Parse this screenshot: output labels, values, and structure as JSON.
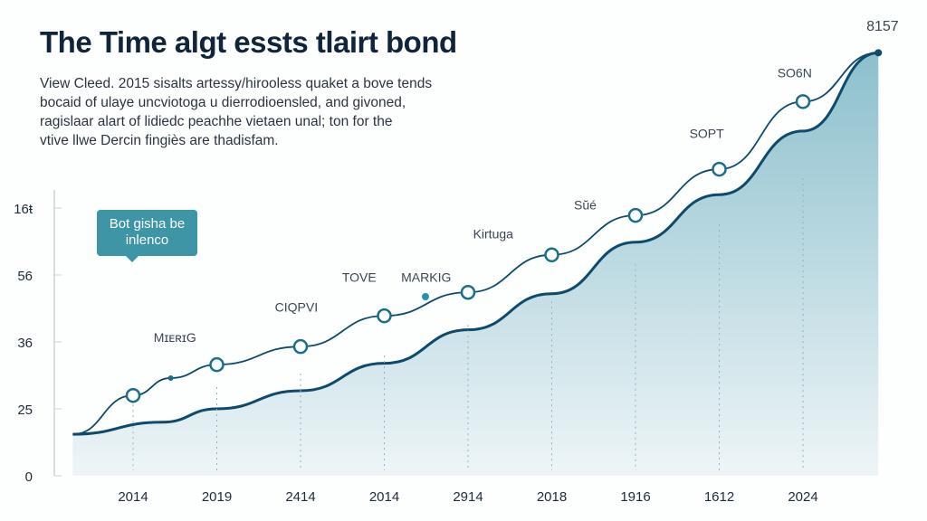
{
  "chart_data": {
    "type": "area",
    "title": "The Time algt essts tlairt bond",
    "subtitle": [
      "View Cleed. 2015 sisalts artessy/hirooless quaket a bove tends",
      "bocaid of ulaye uncviotoga u dierrodioensled, and givoned,",
      "ragislaar alart of lidiedc peachhe vietaen unal; ton for the",
      "vtive llwe Dercin fingiès are thadisfam."
    ],
    "y_tick_labels": [
      "0",
      "25",
      "36",
      "56",
      "16ŧ"
    ],
    "x_tick_labels": [
      "2014",
      "2019",
      "2414",
      "2014",
      "2914",
      "2018",
      "1916",
      "1612",
      "2024"
    ],
    "y_scale_note": "values in tick-index units (0 = first tick, 4 = top tick)",
    "ylim": [
      0,
      6.5
    ],
    "series": [
      {
        "name": "upper-line",
        "x": [
          -0.72,
          0,
          0.45,
          1,
          2,
          3,
          4,
          5,
          6,
          7,
          8,
          8.9
        ],
        "values": [
          0.62,
          1.2,
          1.46,
          1.66,
          1.93,
          2.39,
          2.74,
          3.3,
          3.89,
          4.58,
          5.59,
          6.32
        ]
      },
      {
        "name": "area",
        "x": [
          -0.72,
          0.35,
          1,
          2,
          3,
          4,
          5,
          6,
          7,
          8,
          8.9
        ],
        "values": [
          0.62,
          0.8,
          1.0,
          1.27,
          1.68,
          2.18,
          2.72,
          3.49,
          4.2,
          5.15,
          6.32
        ]
      }
    ],
    "annotations": [
      {
        "text": "MɪᴇʀɪG",
        "x": 0.5,
        "y": 2.0
      },
      {
        "text": "CIQPVI",
        "x": 1.95,
        "y": 2.45
      },
      {
        "text": "TOVE",
        "x": 2.7,
        "y": 2.9
      },
      {
        "text": "MARKIG",
        "x": 3.5,
        "y": 2.9
      },
      {
        "text": "Kirtuga",
        "x": 4.3,
        "y": 3.55
      },
      {
        "text": "Sŭé",
        "x": 5.4,
        "y": 3.98
      },
      {
        "text": "SOPT",
        "x": 6.85,
        "y": 5.05
      },
      {
        "text": "SO6N",
        "x": 7.9,
        "y": 5.95
      },
      {
        "text": "8157",
        "x": 8.95,
        "y": 6.65
      }
    ],
    "callout": "Bot gisha be inlenco",
    "colors": {
      "line": "#0d4a6b",
      "area": "#6fb0c0",
      "marker": "#1a6f88",
      "callout": "#3d95a6"
    }
  }
}
